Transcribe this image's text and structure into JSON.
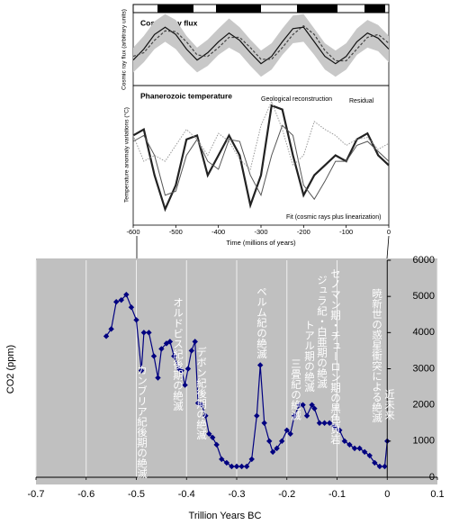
{
  "chart_data": [
    {
      "type": "line",
      "title": "Cosmic ray flux",
      "y_label": "Cosmic ray flux (arbitrary units)",
      "x": [
        -600,
        -575,
        -550,
        -525,
        -500,
        -475,
        -450,
        -425,
        -400,
        -375,
        -350,
        -325,
        -300,
        -275,
        -250,
        -225,
        -200,
        -175,
        -150,
        -125,
        -100,
        -75,
        -50,
        -25,
        0
      ],
      "xlim": [
        -600,
        0
      ],
      "ylim": [
        0,
        1
      ],
      "band": {
        "color": "#c8c8c8",
        "low": [
          0.18,
          0.32,
          0.5,
          0.6,
          0.5,
          0.32,
          0.18,
          0.27,
          0.42,
          0.52,
          0.44,
          0.27,
          0.12,
          0.22,
          0.42,
          0.58,
          0.6,
          0.42,
          0.22,
          0.12,
          0.22,
          0.42,
          0.52,
          0.47,
          0.32
        ],
        "high": [
          0.52,
          0.68,
          0.88,
          0.98,
          0.9,
          0.68,
          0.52,
          0.63,
          0.78,
          0.92,
          0.8,
          0.63,
          0.48,
          0.58,
          0.78,
          0.96,
          0.98,
          0.78,
          0.58,
          0.48,
          0.58,
          0.78,
          0.9,
          0.83,
          0.68
        ]
      },
      "series": [
        {
          "color": "#111",
          "values": [
            0.35,
            0.5,
            0.7,
            0.8,
            0.7,
            0.5,
            0.35,
            0.45,
            0.6,
            0.72,
            0.62,
            0.45,
            0.3,
            0.4,
            0.6,
            0.78,
            0.8,
            0.6,
            0.4,
            0.3,
            0.4,
            0.6,
            0.72,
            0.65,
            0.5
          ]
        },
        {
          "color": "#444",
          "dash": "3 2",
          "values": [
            0.4,
            0.45,
            0.62,
            0.75,
            0.74,
            0.6,
            0.42,
            0.4,
            0.52,
            0.66,
            0.66,
            0.52,
            0.36,
            0.36,
            0.52,
            0.7,
            0.82,
            0.7,
            0.48,
            0.34,
            0.34,
            0.5,
            0.66,
            0.7,
            0.58
          ]
        }
      ]
    },
    {
      "type": "line",
      "title": "Phanerozoic temperature",
      "x_label": "Time (millions of years)",
      "y_label": "Temperature anomaly variations (°C)",
      "x": [
        -600,
        -575,
        -550,
        -525,
        -500,
        -475,
        -450,
        -425,
        -400,
        -375,
        -350,
        -325,
        -300,
        -275,
        -250,
        -225,
        -200,
        -175,
        -150,
        -125,
        -100,
        -75,
        -50,
        -25,
        0
      ],
      "xlim": [
        -600,
        0
      ],
      "xticks": [
        -600,
        -500,
        -400,
        -300,
        -200,
        -100,
        0
      ],
      "ylim": [
        -4,
        3
      ],
      "series": [
        {
          "name": "Geological reconstruction",
          "color": "#222",
          "width": 2.2,
          "values": [
            0.5,
            0.8,
            -1.5,
            -3.2,
            -2.0,
            0.3,
            0.5,
            -1.5,
            -0.5,
            0.5,
            -0.5,
            -3.0,
            -1.5,
            2.0,
            1.8,
            -0.5,
            -2.5,
            -1.5,
            -1.0,
            -0.5,
            -0.8,
            0.3,
            0.6,
            -0.5,
            -1.0
          ]
        },
        {
          "name": "Fit (cosmic rays plus linearization)",
          "color": "#555",
          "width": 1,
          "values": [
            0.2,
            0.5,
            -0.5,
            -2.5,
            -2.3,
            -0.5,
            0.3,
            -0.8,
            -1.2,
            0.3,
            0.2,
            -1.5,
            -2.5,
            -0.5,
            1.0,
            0.5,
            -2.0,
            -2.7,
            -1.8,
            -0.8,
            -0.8,
            0.0,
            0.2,
            -0.3,
            -0.8
          ]
        },
        {
          "name": "Residual",
          "color": "#999",
          "width": 1,
          "dash": "1.5 1.5",
          "values": [
            0.5,
            -0.8,
            -0.5,
            -0.8,
            0.0,
            0.8,
            0.3,
            -0.5,
            0.6,
            0.2,
            -0.7,
            -1.2,
            1.0,
            2.2,
            0.8,
            -1.0,
            -0.5,
            1.2,
            0.8,
            0.5,
            0.0,
            0.3,
            0.4,
            -0.2,
            0.1
          ]
        }
      ]
    },
    {
      "type": "line",
      "x_label": "Trillion Years BC",
      "y_label": "CO2 (ppm)",
      "xlim": [
        -0.7,
        0.1
      ],
      "xticks": [
        -0.7,
        -0.6,
        -0.5,
        -0.4,
        -0.3,
        -0.2,
        -0.1,
        0,
        0.1
      ],
      "ylim": [
        0,
        6000
      ],
      "yticks": [
        0,
        1000,
        2000,
        3000,
        4000,
        5000,
        6000
      ],
      "grid": "x",
      "x": [
        -0.56,
        -0.55,
        -0.54,
        -0.53,
        -0.52,
        -0.51,
        -0.5,
        -0.49,
        -0.485,
        -0.475,
        -0.465,
        -0.457,
        -0.45,
        -0.44,
        -0.433,
        -0.425,
        -0.415,
        -0.41,
        -0.403,
        -0.397,
        -0.39,
        -0.383,
        -0.377,
        -0.37,
        -0.362,
        -0.355,
        -0.348,
        -0.34,
        -0.33,
        -0.32,
        -0.31,
        -0.3,
        -0.29,
        -0.28,
        -0.27,
        -0.26,
        -0.253,
        -0.245,
        -0.235,
        -0.228,
        -0.22,
        -0.21,
        -0.2,
        -0.193,
        -0.185,
        -0.175,
        -0.168,
        -0.16,
        -0.15,
        -0.145,
        -0.135,
        -0.125,
        -0.115,
        -0.105,
        -0.095,
        -0.085,
        -0.075,
        -0.065,
        -0.055,
        -0.045,
        -0.035,
        -0.025,
        -0.015,
        -0.005,
        0
      ],
      "series": [
        {
          "color": "#000080",
          "values": [
            3900,
            4100,
            4850,
            4900,
            5050,
            4700,
            4350,
            2950,
            4000,
            4000,
            3350,
            2750,
            3550,
            3700,
            3750,
            3350,
            3000,
            2950,
            2550,
            3000,
            3500,
            3750,
            2050,
            2000,
            1700,
            1200,
            1100,
            900,
            500,
            400,
            300,
            300,
            300,
            300,
            500,
            1700,
            3100,
            1500,
            1000,
            700,
            800,
            1000,
            1300,
            1200,
            1700,
            2000,
            2000,
            1700,
            2000,
            1900,
            1500,
            1500,
            1500,
            1400,
            1300,
            1000,
            900,
            800,
            800,
            700,
            600,
            400,
            300,
            300,
            1000
          ]
        }
      ],
      "annotations": [
        "カンブリア紀後期の絶滅",
        "オルドビス紀後期の絶滅",
        "デボン紀後期の絶滅",
        "ペルム紀の絶滅",
        "三畳紀の絶滅",
        "トアル期の絶滅",
        "ジュラ紀・白亜期の絶滅",
        "セノマン期・チューロン期の黒色頁岩",
        "暁新世の惑星衝突による絶滅",
        "近未来"
      ]
    }
  ]
}
